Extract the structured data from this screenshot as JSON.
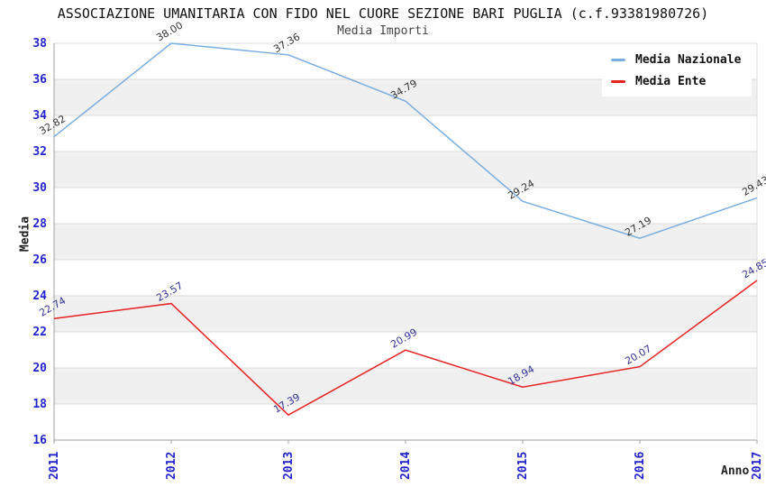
{
  "chart_data": {
    "type": "line",
    "title": "ASSOCIAZIONE UMANITARIA CON FIDO NEL CUORE SEZIONE BARI PUGLIA (c.f.93381980726)",
    "subtitle": "Media Importi",
    "xlabel": "Anno",
    "ylabel": "Media",
    "categories": [
      "2011",
      "2012",
      "2013",
      "2014",
      "2015",
      "2016",
      "2017"
    ],
    "series": [
      {
        "name": "Media Nazionale",
        "color": "#7aaee0",
        "label_color": "#333333",
        "values": [
          32.82,
          38.0,
          37.36,
          34.79,
          29.24,
          27.19,
          29.43
        ]
      },
      {
        "name": "Media Ente",
        "color": "#e62222",
        "label_color": "#323296",
        "values": [
          22.74,
          23.57,
          17.39,
          20.99,
          18.94,
          20.07,
          24.85
        ]
      }
    ],
    "ylim": [
      16,
      38
    ],
    "ytick_step": 2,
    "grid": true,
    "legend_position": "top-right",
    "band_color": "#f0f0f0",
    "gridline_color": "#dcdcdc",
    "axis_color": "#a0a0a0",
    "tick_label_color": "#2424cc"
  }
}
